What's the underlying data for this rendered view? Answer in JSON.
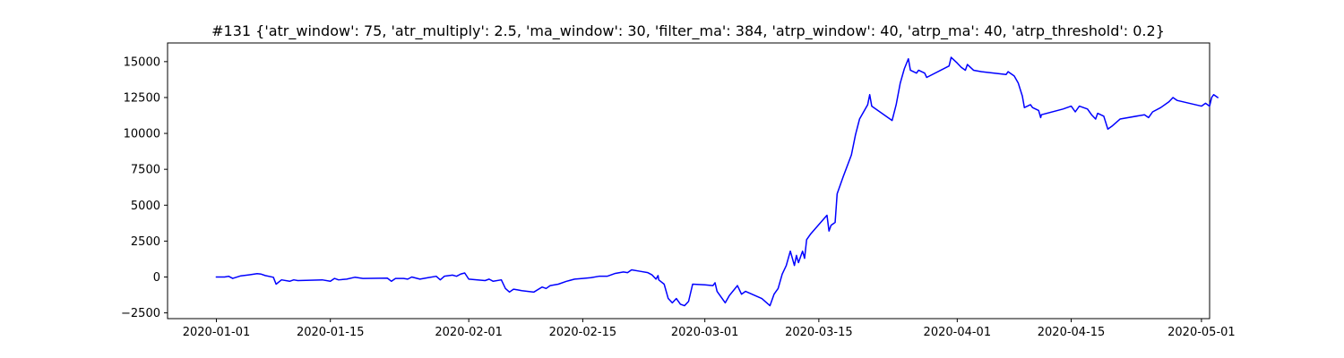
{
  "chart_data": {
    "type": "line",
    "title": "#131 {'atr_window': 75, 'atr_multiply': 2.5, 'ma_window': 30, 'filter_ma': 384, 'atrp_window': 40, 'atrp_ma': 40, 'atrp_threshold': 0.2}",
    "xlabel": "",
    "ylabel": "",
    "grid": false,
    "legend": "none",
    "line_color": "#0000ff",
    "xlim": [
      "2019-12-26",
      "2020-05-02"
    ],
    "ylim": [
      -2900,
      16300
    ],
    "x_ticks": [
      "2020-01-01",
      "2020-01-15",
      "2020-02-01",
      "2020-02-15",
      "2020-03-01",
      "2020-03-15",
      "2020-04-01",
      "2020-04-15",
      "2020-05-01"
    ],
    "y_ticks": [
      "−2500",
      "0",
      "2500",
      "5000",
      "7500",
      "10000",
      "12500",
      "15000"
    ],
    "y_tick_values": [
      -2500,
      0,
      2500,
      5000,
      7500,
      10000,
      12500,
      15000
    ],
    "series": [
      {
        "points": [
          [
            "2020-01-01",
            0
          ],
          [
            "2020-01-02",
            0
          ],
          [
            "2020-01-02 12:00",
            50
          ],
          [
            "2020-01-03",
            -100
          ],
          [
            "2020-01-04",
            80
          ],
          [
            "2020-01-05",
            150
          ],
          [
            "2020-01-06",
            230
          ],
          [
            "2020-01-06 12:00",
            200
          ],
          [
            "2020-01-07",
            100
          ],
          [
            "2020-01-08",
            -20
          ],
          [
            "2020-01-08 08:00",
            -500
          ],
          [
            "2020-01-09",
            -200
          ],
          [
            "2020-01-10",
            -300
          ],
          [
            "2020-01-10 12:00",
            -200
          ],
          [
            "2020-01-11",
            -250
          ],
          [
            "2020-01-14",
            -200
          ],
          [
            "2020-01-15",
            -300
          ],
          [
            "2020-01-15 12:00",
            -100
          ],
          [
            "2020-01-16",
            -200
          ],
          [
            "2020-01-17",
            -150
          ],
          [
            "2020-01-18",
            -20
          ],
          [
            "2020-01-19",
            -100
          ],
          [
            "2020-01-22",
            -80
          ],
          [
            "2020-01-22 12:00",
            -300
          ],
          [
            "2020-01-23",
            -100
          ],
          [
            "2020-01-24",
            -100
          ],
          [
            "2020-01-24 12:00",
            -150
          ],
          [
            "2020-01-25",
            0
          ],
          [
            "2020-01-26",
            -150
          ],
          [
            "2020-01-27",
            -50
          ],
          [
            "2020-01-28",
            50
          ],
          [
            "2020-01-28 12:00",
            -200
          ],
          [
            "2020-01-29",
            50
          ],
          [
            "2020-01-30",
            130
          ],
          [
            "2020-01-30 12:00",
            50
          ],
          [
            "2020-01-31",
            200
          ],
          [
            "2020-01-31 12:00",
            280
          ],
          [
            "2020-02-01",
            -150
          ],
          [
            "2020-02-03",
            -250
          ],
          [
            "2020-02-03 12:00",
            -150
          ],
          [
            "2020-02-04",
            -300
          ],
          [
            "2020-02-05",
            -200
          ],
          [
            "2020-02-05 12:00",
            -800
          ],
          [
            "2020-02-06",
            -1050
          ],
          [
            "2020-02-06 12:00",
            -850
          ],
          [
            "2020-02-07",
            -900
          ],
          [
            "2020-02-07 12:00",
            -950
          ],
          [
            "2020-02-09",
            -1050
          ],
          [
            "2020-02-10",
            -700
          ],
          [
            "2020-02-10 12:00",
            -800
          ],
          [
            "2020-02-11",
            -600
          ],
          [
            "2020-02-12",
            -500
          ],
          [
            "2020-02-13",
            -300
          ],
          [
            "2020-02-14",
            -150
          ],
          [
            "2020-02-15",
            -100
          ],
          [
            "2020-02-16",
            -50
          ],
          [
            "2020-02-17",
            50
          ],
          [
            "2020-02-18",
            50
          ],
          [
            "2020-02-19",
            250
          ],
          [
            "2020-02-20",
            350
          ],
          [
            "2020-02-20 12:00",
            300
          ],
          [
            "2020-02-21",
            500
          ],
          [
            "2020-02-22",
            400
          ],
          [
            "2020-02-23",
            300
          ],
          [
            "2020-02-23 12:00",
            150
          ],
          [
            "2020-02-24",
            -150
          ],
          [
            "2020-02-24 06:00",
            100
          ],
          [
            "2020-02-24 08:00",
            -200
          ],
          [
            "2020-02-25",
            -500
          ],
          [
            "2020-02-25 12:00",
            -1500
          ],
          [
            "2020-02-26",
            -1800
          ],
          [
            "2020-02-26 12:00",
            -1500
          ],
          [
            "2020-02-27",
            -1900
          ],
          [
            "2020-02-27 12:00",
            -2000
          ],
          [
            "2020-02-28",
            -1700
          ],
          [
            "2020-02-28 12:00",
            -500
          ],
          [
            "2020-03-01",
            -550
          ],
          [
            "2020-03-02",
            -600
          ],
          [
            "2020-03-02 06:00",
            -400
          ],
          [
            "2020-03-02 12:00",
            -1000
          ],
          [
            "2020-03-03",
            -1400
          ],
          [
            "2020-03-03 12:00",
            -1800
          ],
          [
            "2020-03-04",
            -1300
          ],
          [
            "2020-03-05",
            -600
          ],
          [
            "2020-03-05 12:00",
            -1200
          ],
          [
            "2020-03-06",
            -1000
          ],
          [
            "2020-03-08",
            -1500
          ],
          [
            "2020-03-09",
            -2000
          ],
          [
            "2020-03-09 12:00",
            -1200
          ],
          [
            "2020-03-10",
            -800
          ],
          [
            "2020-03-10 12:00",
            200
          ],
          [
            "2020-03-11",
            800
          ],
          [
            "2020-03-11 12:00",
            1800
          ],
          [
            "2020-03-12",
            800
          ],
          [
            "2020-03-12 06:00",
            1500
          ],
          [
            "2020-03-12 12:00",
            1000
          ],
          [
            "2020-03-13",
            1800
          ],
          [
            "2020-03-13 06:00",
            1300
          ],
          [
            "2020-03-13 12:00",
            2600
          ],
          [
            "2020-03-14",
            3000
          ],
          [
            "2020-03-16",
            4300
          ],
          [
            "2020-03-16 06:00",
            3200
          ],
          [
            "2020-03-16 12:00",
            3600
          ],
          [
            "2020-03-17",
            3800
          ],
          [
            "2020-03-17 06:00",
            5800
          ],
          [
            "2020-03-18",
            7000
          ],
          [
            "2020-03-19",
            8500
          ],
          [
            "2020-03-19 12:00",
            9900
          ],
          [
            "2020-03-20",
            11000
          ],
          [
            "2020-03-21",
            12000
          ],
          [
            "2020-03-21 06:00",
            12700
          ],
          [
            "2020-03-21 12:00",
            11900
          ],
          [
            "2020-03-24",
            10900
          ],
          [
            "2020-03-24 12:00",
            12000
          ],
          [
            "2020-03-25",
            13500
          ],
          [
            "2020-03-25 12:00",
            14500
          ],
          [
            "2020-03-26",
            15200
          ],
          [
            "2020-03-26 06:00",
            14400
          ],
          [
            "2020-03-27",
            14200
          ],
          [
            "2020-03-27 06:00",
            14400
          ],
          [
            "2020-03-28",
            14200
          ],
          [
            "2020-03-28 06:00",
            13900
          ],
          [
            "2020-03-31",
            14700
          ],
          [
            "2020-03-31 06:00",
            15300
          ],
          [
            "2020-04-01",
            14900
          ],
          [
            "2020-04-01 12:00",
            14600
          ],
          [
            "2020-04-02",
            14400
          ],
          [
            "2020-04-02 06:00",
            14800
          ],
          [
            "2020-04-03",
            14400
          ],
          [
            "2020-04-04",
            14300
          ],
          [
            "2020-04-07",
            14100
          ],
          [
            "2020-04-07 06:00",
            14300
          ],
          [
            "2020-04-08",
            14000
          ],
          [
            "2020-04-08 12:00",
            13500
          ],
          [
            "2020-04-09",
            12600
          ],
          [
            "2020-04-09 06:00",
            11800
          ],
          [
            "2020-04-10",
            12000
          ],
          [
            "2020-04-10 06:00",
            11800
          ],
          [
            "2020-04-11",
            11600
          ],
          [
            "2020-04-11 06:00",
            11100
          ],
          [
            "2020-04-11 08:00",
            11300
          ],
          [
            "2020-04-14",
            11700
          ],
          [
            "2020-04-15",
            11900
          ],
          [
            "2020-04-15 12:00",
            11500
          ],
          [
            "2020-04-16",
            11900
          ],
          [
            "2020-04-17",
            11700
          ],
          [
            "2020-04-17 12:00",
            11300
          ],
          [
            "2020-04-18",
            11000
          ],
          [
            "2020-04-18 06:00",
            11400
          ],
          [
            "2020-04-19",
            11200
          ],
          [
            "2020-04-19 12:00",
            10300
          ],
          [
            "2020-04-20",
            10500
          ],
          [
            "2020-04-21",
            11000
          ],
          [
            "2020-04-24",
            11300
          ],
          [
            "2020-04-24 12:00",
            11100
          ],
          [
            "2020-04-25",
            11500
          ],
          [
            "2020-04-26",
            11800
          ],
          [
            "2020-04-27",
            12200
          ],
          [
            "2020-04-27 12:00",
            12500
          ],
          [
            "2020-04-28",
            12300
          ],
          [
            "2020-05-01",
            11900
          ],
          [
            "2020-05-01 12:00",
            12100
          ],
          [
            "2020-05-02",
            11900
          ],
          [
            "2020-05-02 06:00",
            12500
          ],
          [
            "2020-05-02 12:00",
            12700
          ],
          [
            "2020-05-03",
            12500
          ]
        ]
      }
    ]
  }
}
